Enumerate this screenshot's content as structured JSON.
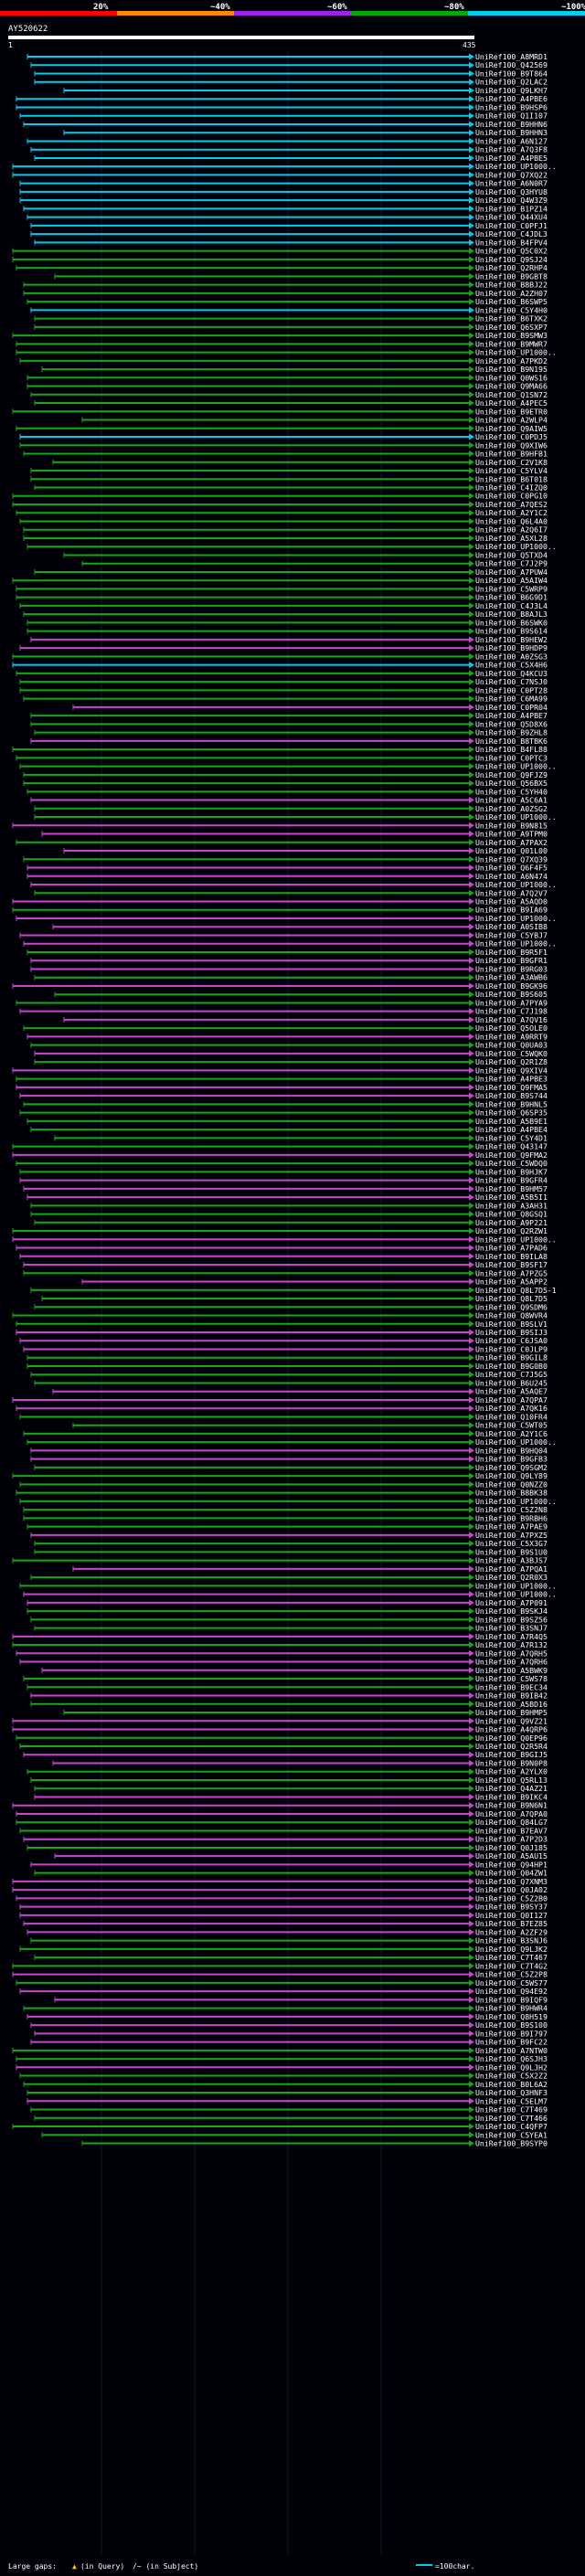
{
  "scale": {
    "labels": [
      "20%",
      "~40%",
      "~60%",
      "~80%",
      "~100%"
    ],
    "colors": [
      "#ff0000",
      "#ff8800",
      "#a020f0",
      "#00aa00",
      "#00ccee"
    ]
  },
  "query": {
    "id": "AY520622",
    "start": "1",
    "end": "435"
  },
  "footer": {
    "large_gaps": "Large gaps:",
    "in_query": "(in Query)",
    "in_subject": "/~ (in Subject)",
    "scale_note": "=100char."
  },
  "hit_colors": {
    "cyan": "#00ccee",
    "green": "#11aa11",
    "purple": "#cc44cc"
  },
  "hits": [
    {
      "label": "UniRef100_A8MRD1",
      "color": "cyan"
    },
    {
      "label": "UniRef100_Q42569",
      "color": "cyan"
    },
    {
      "label": "UniRef100_B9T864",
      "color": "cyan"
    },
    {
      "label": "UniRef100_Q2LAC2",
      "color": "cyan"
    },
    {
      "label": "UniRef100_Q9LKH7",
      "color": "cyan"
    },
    {
      "label": "UniRef100_A4PBE6",
      "color": "cyan"
    },
    {
      "label": "UniRef100_B9HSP6",
      "color": "cyan"
    },
    {
      "label": "UniRef100_Q1I107",
      "color": "cyan"
    },
    {
      "label": "UniRef100_B9HHN6",
      "color": "cyan"
    },
    {
      "label": "UniRef100_B9HHN3",
      "color": "cyan"
    },
    {
      "label": "UniRef100_A6N127",
      "color": "cyan"
    },
    {
      "label": "UniRef100_A7Q3F8",
      "color": "cyan"
    },
    {
      "label": "UniRef100_A4PBE5",
      "color": "cyan"
    },
    {
      "label": "UniRef100_UP1000..",
      "color": "cyan"
    },
    {
      "label": "UniRef100_Q7XQ22",
      "color": "cyan"
    },
    {
      "label": "UniRef100_A6N0R7",
      "color": "cyan"
    },
    {
      "label": "UniRef100_Q3HYU8",
      "color": "cyan"
    },
    {
      "label": "UniRef100_Q4W3Z9",
      "color": "cyan"
    },
    {
      "label": "UniRef100_B1PZ14",
      "color": "cyan"
    },
    {
      "label": "UniRef100_Q44XU4",
      "color": "cyan"
    },
    {
      "label": "UniRef100_C0PFJ1",
      "color": "cyan"
    },
    {
      "label": "UniRef100_C4JDL3",
      "color": "cyan"
    },
    {
      "label": "UniRef100_B4FPV4",
      "color": "cyan"
    },
    {
      "label": "UniRef100_Q5C0X2",
      "color": "green"
    },
    {
      "label": "UniRef100_Q9SJ24",
      "color": "green"
    },
    {
      "label": "UniRef100_Q2RHP4",
      "color": "green"
    },
    {
      "label": "UniRef100_B9GBT8",
      "color": "green"
    },
    {
      "label": "UniRef100_B8BJ22",
      "color": "green"
    },
    {
      "label": "UniRef100_A2ZH07",
      "color": "green"
    },
    {
      "label": "UniRef100_B6SWP5",
      "color": "green"
    },
    {
      "label": "UniRef100_C5Y4H0",
      "color": "cyan"
    },
    {
      "label": "UniRef100_B6TXK2",
      "color": "green"
    },
    {
      "label": "UniRef100_Q6SXP7",
      "color": "green"
    },
    {
      "label": "UniRef100_B9SMW3",
      "color": "green"
    },
    {
      "label": "UniRef100_B9MWR7",
      "color": "green"
    },
    {
      "label": "UniRef100_UP1000..",
      "color": "green"
    },
    {
      "label": "UniRef100_A7PKD2",
      "color": "green"
    },
    {
      "label": "UniRef100_B9N195",
      "color": "green"
    },
    {
      "label": "UniRef100_Q0WS16",
      "color": "green"
    },
    {
      "label": "UniRef100_Q9MA66",
      "color": "green"
    },
    {
      "label": "UniRef100_Q1SN72",
      "color": "green"
    },
    {
      "label": "UniRef100_A4PEC5",
      "color": "green"
    },
    {
      "label": "UniRef100_B9ETR0",
      "color": "green"
    },
    {
      "label": "UniRef100_A2WLP4",
      "color": "green"
    },
    {
      "label": "UniRef100_Q9AIW5",
      "color": "green"
    },
    {
      "label": "UniRef100_C0PDJ5",
      "color": "cyan"
    },
    {
      "label": "UniRef100_Q9XIW6",
      "color": "green"
    },
    {
      "label": "UniRef100_B9HFB1",
      "color": "green"
    },
    {
      "label": "UniRef100_C2V1K8",
      "color": "green"
    },
    {
      "label": "UniRef100_C5YLV4",
      "color": "green"
    },
    {
      "label": "UniRef100_B6T018",
      "color": "green"
    },
    {
      "label": "UniRef100_C4IZQ0",
      "color": "green"
    },
    {
      "label": "UniRef100_C0PG10",
      "color": "green"
    },
    {
      "label": "UniRef100_A7QES2",
      "color": "green"
    },
    {
      "label": "UniRef100_A2Y1C2",
      "color": "green"
    },
    {
      "label": "UniRef100_Q6L4A0",
      "color": "green"
    },
    {
      "label": "UniRef100_A2Q6I7",
      "color": "green"
    },
    {
      "label": "UniRef100_A5XL28",
      "color": "green"
    },
    {
      "label": "UniRef100_UP1000..",
      "color": "green"
    },
    {
      "label": "UniRef100_Q5TXD4",
      "color": "green"
    },
    {
      "label": "UniRef100_C7J2P9",
      "color": "green"
    },
    {
      "label": "UniRef100_A7PUW4",
      "color": "green"
    },
    {
      "label": "UniRef100_A5AIW4",
      "color": "green"
    },
    {
      "label": "UniRef100_C5WRP9",
      "color": "green"
    },
    {
      "label": "UniRef100_B6G9D1",
      "color": "green"
    },
    {
      "label": "UniRef100_C4J3L4",
      "color": "green"
    },
    {
      "label": "UniRef100_B8AJL3",
      "color": "green"
    },
    {
      "label": "UniRef100_B6SWK0",
      "color": "green"
    },
    {
      "label": "UniRef100_B9S614",
      "color": "green"
    },
    {
      "label": "UniRef100_B9HEW2",
      "color": "purple"
    },
    {
      "label": "UniRef100_B9HDP9",
      "color": "purple"
    },
    {
      "label": "UniRef100_A0ZSG3",
      "color": "green"
    },
    {
      "label": "UniRef100_C5X4H6",
      "color": "cyan"
    },
    {
      "label": "UniRef100_Q4KCU3",
      "color": "green"
    },
    {
      "label": "UniRef100_C7NSJ0",
      "color": "green"
    },
    {
      "label": "UniRef100_C0PT28",
      "color": "green"
    },
    {
      "label": "UniRef100_C6MA99",
      "color": "green"
    },
    {
      "label": "UniRef100_C0PR04",
      "color": "purple"
    },
    {
      "label": "UniRef100_A4PBE7",
      "color": "green"
    },
    {
      "label": "UniRef100_Q5D8X6",
      "color": "green"
    },
    {
      "label": "UniRef100_B9ZHL8",
      "color": "green"
    },
    {
      "label": "UniRef100_B8TBK6",
      "color": "purple"
    },
    {
      "label": "UniRef100_B4FL88",
      "color": "green"
    },
    {
      "label": "UniRef100_C0PTC3",
      "color": "green"
    },
    {
      "label": "UniRef100_UP1000..",
      "color": "green"
    },
    {
      "label": "UniRef100_Q9FJZ9",
      "color": "green"
    },
    {
      "label": "UniRef100_Q56BX5",
      "color": "green"
    },
    {
      "label": "UniRef100_C5YH40",
      "color": "green"
    },
    {
      "label": "UniRef100_A5C6A1",
      "color": "purple"
    },
    {
      "label": "UniRef100_A0ZSG2",
      "color": "green"
    },
    {
      "label": "UniRef100_UP1000..",
      "color": "green"
    },
    {
      "label": "UniRef100_B9N815",
      "color": "purple"
    },
    {
      "label": "UniRef100_A9TPM0",
      "color": "purple"
    },
    {
      "label": "UniRef100_A7PAX2",
      "color": "green"
    },
    {
      "label": "UniRef100_Q01L00",
      "color": "purple"
    },
    {
      "label": "UniRef100_Q7XQ39",
      "color": "green"
    },
    {
      "label": "UniRef100_Q6F4F5",
      "color": "purple"
    },
    {
      "label": "UniRef100_A6N474",
      "color": "purple"
    },
    {
      "label": "UniRef100_UP1000..",
      "color": "purple"
    },
    {
      "label": "UniRef100_A7Q2V7",
      "color": "green"
    },
    {
      "label": "UniRef100_A5AQD0",
      "color": "purple"
    },
    {
      "label": "UniRef100_B9IA69",
      "color": "green"
    },
    {
      "label": "UniRef100_UP1000..",
      "color": "purple"
    },
    {
      "label": "UniRef100_A0SIB8",
      "color": "purple"
    },
    {
      "label": "UniRef100_C5YBJ7",
      "color": "purple"
    },
    {
      "label": "UniRef100_UP1000..",
      "color": "purple"
    },
    {
      "label": "UniRef100_B9R5F1",
      "color": "green"
    },
    {
      "label": "UniRef100_B9GFR1",
      "color": "purple"
    },
    {
      "label": "UniRef100_B9RG03",
      "color": "purple"
    },
    {
      "label": "UniRef100_A3AWB6",
      "color": "green"
    },
    {
      "label": "UniRef100_B9GK96",
      "color": "purple"
    },
    {
      "label": "UniRef100_B9S605",
      "color": "green"
    },
    {
      "label": "UniRef100_A7PYA9",
      "color": "green"
    },
    {
      "label": "UniRef100_C7J198",
      "color": "purple"
    },
    {
      "label": "UniRef100_A7QV16",
      "color": "purple"
    },
    {
      "label": "UniRef100_Q5OLE0",
      "color": "green"
    },
    {
      "label": "UniRef100_A9RRT9",
      "color": "purple"
    },
    {
      "label": "UniRef100_Q0UA03",
      "color": "green"
    },
    {
      "label": "UniRef100_C5WQK0",
      "color": "purple"
    },
    {
      "label": "UniRef100_Q2R1Z8",
      "color": "green"
    },
    {
      "label": "UniRef100_Q9XIV4",
      "color": "purple"
    },
    {
      "label": "UniRef100_A4PBE3",
      "color": "green"
    },
    {
      "label": "UniRef100_Q9FMA5",
      "color": "purple"
    },
    {
      "label": "UniRef100_B9S744",
      "color": "purple"
    },
    {
      "label": "UniRef100_B9HNL5",
      "color": "green"
    },
    {
      "label": "UniRef100_Q6SP35",
      "color": "green"
    },
    {
      "label": "UniRef100_A5B9E1",
      "color": "green"
    },
    {
      "label": "UniRef100_A4PBE4",
      "color": "green"
    },
    {
      "label": "UniRef100_C5Y4D1",
      "color": "green"
    },
    {
      "label": "UniRef100_Q43147",
      "color": "green"
    },
    {
      "label": "UniRef100_Q9FMA2",
      "color": "purple"
    },
    {
      "label": "UniRef100_C5WDQ0",
      "color": "green"
    },
    {
      "label": "UniRef100_B9HJK7",
      "color": "green"
    },
    {
      "label": "UniRef100_B9GFR4",
      "color": "purple"
    },
    {
      "label": "UniRef100_B9HM57",
      "color": "purple"
    },
    {
      "label": "UniRef100_A5B5I1",
      "color": "purple"
    },
    {
      "label": "UniRef100_A3AH31",
      "color": "green"
    },
    {
      "label": "UniRef100_Q8GSQ1",
      "color": "green"
    },
    {
      "label": "UniRef100_A9P221",
      "color": "green"
    },
    {
      "label": "UniRef100_Q2RZW1",
      "color": "green"
    },
    {
      "label": "UniRef100_UP1000..",
      "color": "purple"
    },
    {
      "label": "UniRef100_A7PAD6",
      "color": "purple"
    },
    {
      "label": "UniRef100_B9ILA8",
      "color": "purple"
    },
    {
      "label": "UniRef100_B9SF17",
      "color": "purple"
    },
    {
      "label": "UniRef100_A7PZG5",
      "color": "green"
    },
    {
      "label": "UniRef100_A5APP2",
      "color": "purple"
    },
    {
      "label": "UniRef100_Q8L7D5-1",
      "color": "green"
    },
    {
      "label": "UniRef100_Q8L7D5",
      "color": "green"
    },
    {
      "label": "UniRef100_Q9SDM6",
      "color": "green"
    },
    {
      "label": "UniRef100_Q8WVR4",
      "color": "green"
    },
    {
      "label": "UniRef100_B9SLV1",
      "color": "green"
    },
    {
      "label": "UniRef100_B9SIJ3",
      "color": "purple"
    },
    {
      "label": "UniRef100_C6JSA0",
      "color": "purple"
    },
    {
      "label": "UniRef100_C0JLP9",
      "color": "purple"
    },
    {
      "label": "UniRef100_B9GIL8",
      "color": "green"
    },
    {
      "label": "UniRef100_B9G0B0",
      "color": "green"
    },
    {
      "label": "UniRef100_C7J5G5",
      "color": "green"
    },
    {
      "label": "UniRef100_B6U245",
      "color": "green"
    },
    {
      "label": "UniRef100_A5AQE7",
      "color": "purple"
    },
    {
      "label": "UniRef100_A7QPA7",
      "color": "purple"
    },
    {
      "label": "UniRef100_A7QK16",
      "color": "purple"
    },
    {
      "label": "UniRef100_Q10FR4",
      "color": "green"
    },
    {
      "label": "UniRef100_C5WT05",
      "color": "green"
    },
    {
      "label": "UniRef100_A2Y1C6",
      "color": "green"
    },
    {
      "label": "UniRef100_UP1000..",
      "color": "green"
    },
    {
      "label": "UniRef100_B9HQ04",
      "color": "purple"
    },
    {
      "label": "UniRef100_B9GFB3",
      "color": "purple"
    },
    {
      "label": "UniRef100_Q9SGM2",
      "color": "green"
    },
    {
      "label": "UniRef100_Q9LY89",
      "color": "green"
    },
    {
      "label": "UniRef100_Q0NZZ0",
      "color": "green"
    },
    {
      "label": "UniRef100_B8BK38",
      "color": "green"
    },
    {
      "label": "UniRef100_UP1000..",
      "color": "green"
    },
    {
      "label": "UniRef100_C5Z2N8",
      "color": "green"
    },
    {
      "label": "UniRef100_B9RBH6",
      "color": "green"
    },
    {
      "label": "UniRef100_A7PAE9",
      "color": "green"
    },
    {
      "label": "UniRef100_A7PXZ5",
      "color": "purple"
    },
    {
      "label": "UniRef100_C5X3G7",
      "color": "green"
    },
    {
      "label": "UniRef100_B9S1U0",
      "color": "green"
    },
    {
      "label": "UniRef100_A3BJS7",
      "color": "green"
    },
    {
      "label": "UniRef100_A7PQA1",
      "color": "purple"
    },
    {
      "label": "UniRef100_Q2R0X3",
      "color": "green"
    },
    {
      "label": "UniRef100_UP1000..",
      "color": "green"
    },
    {
      "label": "UniRef100_UP1000..",
      "color": "purple"
    },
    {
      "label": "UniRef100_A7P091",
      "color": "purple"
    },
    {
      "label": "UniRef100_B9SKJ4",
      "color": "green"
    },
    {
      "label": "UniRef100_B9SZ56",
      "color": "green"
    },
    {
      "label": "UniRef100_B3SNJ7",
      "color": "green"
    },
    {
      "label": "UniRef100_A7R4Q5",
      "color": "purple"
    },
    {
      "label": "UniRef100_A7R132",
      "color": "green"
    },
    {
      "label": "UniRef100_A7QRH5",
      "color": "purple"
    },
    {
      "label": "UniRef100_A7QRH6",
      "color": "purple"
    },
    {
      "label": "UniRef100_A5BWK9",
      "color": "purple"
    },
    {
      "label": "UniRef100_C5WS78",
      "color": "green"
    },
    {
      "label": "UniRef100_B9EC34",
      "color": "green"
    },
    {
      "label": "UniRef100_B9IB42",
      "color": "purple"
    },
    {
      "label": "UniRef100_A5BD16",
      "color": "green"
    },
    {
      "label": "UniRef100_B9HMP5",
      "color": "green"
    },
    {
      "label": "UniRef100_Q9VZ21",
      "color": "purple"
    },
    {
      "label": "UniRef100_A4QRP6",
      "color": "purple"
    },
    {
      "label": "UniRef100_Q0EP96",
      "color": "green"
    },
    {
      "label": "UniRef100_Q2R5R4",
      "color": "green"
    },
    {
      "label": "UniRef100_B9GIJ5",
      "color": "purple"
    },
    {
      "label": "UniRef100_B9N0P8",
      "color": "purple"
    },
    {
      "label": "UniRef100_A2YLX0",
      "color": "green"
    },
    {
      "label": "UniRef100_Q5RL13",
      "color": "green"
    },
    {
      "label": "UniRef100_Q4AZ21",
      "color": "green"
    },
    {
      "label": "UniRef100_B9IKC4",
      "color": "purple"
    },
    {
      "label": "UniRef100_B9N6N1",
      "color": "purple"
    },
    {
      "label": "UniRef100_A7QPA0",
      "color": "purple"
    },
    {
      "label": "UniRef100_Q84LG7",
      "color": "green"
    },
    {
      "label": "UniRef100_B7EAV7",
      "color": "green"
    },
    {
      "label": "UniRef100_A7P2D3",
      "color": "purple"
    },
    {
      "label": "UniRef100_Q0J185",
      "color": "green"
    },
    {
      "label": "UniRef100_A5AU15",
      "color": "purple"
    },
    {
      "label": "UniRef100_Q94HP1",
      "color": "purple"
    },
    {
      "label": "UniRef100_Q04ZW1",
      "color": "green"
    },
    {
      "label": "UniRef100_Q7XNM3",
      "color": "purple"
    },
    {
      "label": "UniRef100_Q0JA02",
      "color": "purple"
    },
    {
      "label": "UniRef100_C5Z2B0",
      "color": "purple"
    },
    {
      "label": "UniRef100_B9SY37",
      "color": "purple"
    },
    {
      "label": "UniRef100_Q0I127",
      "color": "purple"
    },
    {
      "label": "UniRef100_B7EZ85",
      "color": "purple"
    },
    {
      "label": "UniRef100_A2ZF29",
      "color": "purple"
    },
    {
      "label": "UniRef100_B3SNJ6",
      "color": "green"
    },
    {
      "label": "UniRef100_Q9LJK2",
      "color": "green"
    },
    {
      "label": "UniRef100_C7T467",
      "color": "green"
    },
    {
      "label": "UniRef100_C7T4G2",
      "color": "green"
    },
    {
      "label": "UniRef100_C5Z2P8",
      "color": "purple"
    },
    {
      "label": "UniRef100_C5WS77",
      "color": "green"
    },
    {
      "label": "UniRef100_Q94E92",
      "color": "purple"
    },
    {
      "label": "UniRef100_B9IQF9",
      "color": "purple"
    },
    {
      "label": "UniRef100_B9HWR4",
      "color": "green"
    },
    {
      "label": "UniRef100_Q8H519",
      "color": "purple"
    },
    {
      "label": "UniRef100_B9S100",
      "color": "purple"
    },
    {
      "label": "UniRef100_B9I797",
      "color": "purple"
    },
    {
      "label": "UniRef100_B9FC22",
      "color": "purple"
    },
    {
      "label": "UniRef100_A7NTW0",
      "color": "green"
    },
    {
      "label": "UniRef100_Q6SJH3",
      "color": "green"
    },
    {
      "label": "UniRef100_Q9LJH2",
      "color": "purple"
    },
    {
      "label": "UniRef100_C5X2Z2",
      "color": "green"
    },
    {
      "label": "UniRef100_B0L6A2",
      "color": "green"
    },
    {
      "label": "UniRef100_Q3HNF3",
      "color": "green"
    },
    {
      "label": "UniRef100_C5ELM7",
      "color": "purple"
    },
    {
      "label": "UniRef100_C7T469",
      "color": "green"
    },
    {
      "label": "UniRef100_C7T466",
      "color": "green"
    },
    {
      "label": "UniRef100_C4QFP7",
      "color": "green"
    },
    {
      "label": "UniRef100_C5YEA1",
      "color": "green"
    },
    {
      "label": "UniRef100_B9SYP0",
      "color": "green"
    }
  ]
}
